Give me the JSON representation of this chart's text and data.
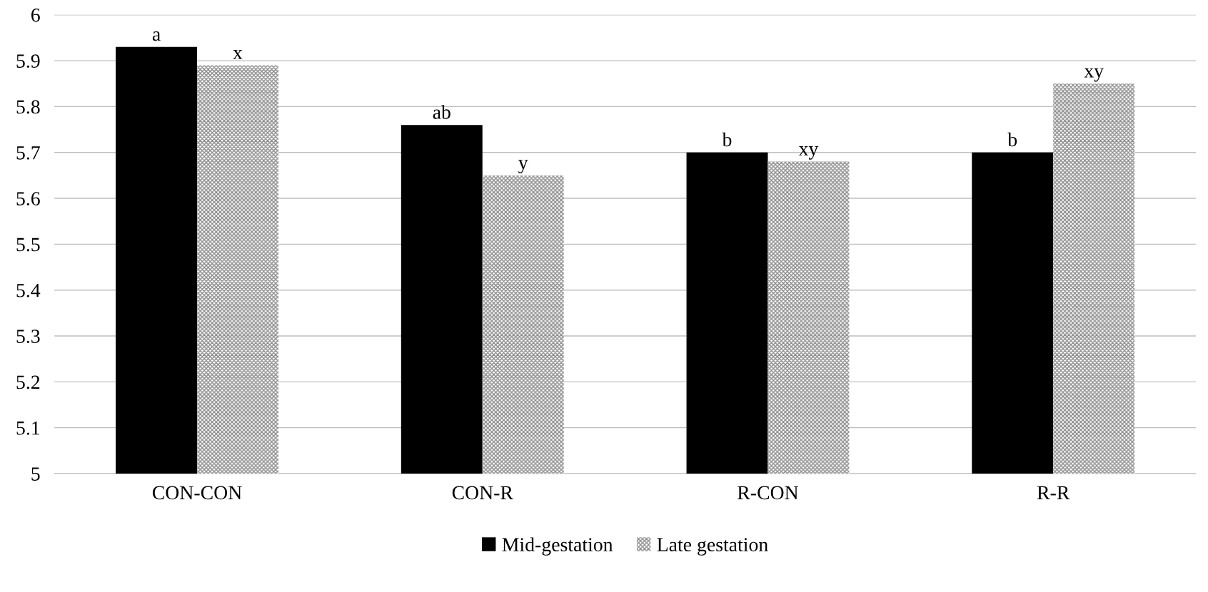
{
  "chart_data": {
    "type": "bar",
    "categories": [
      "CON-CON",
      "CON-R",
      "R-CON",
      "R-R"
    ],
    "series": [
      {
        "name": "Mid-gestation",
        "color": "#000000",
        "values": [
          5.93,
          5.76,
          5.7,
          5.7
        ],
        "value_labels": [
          "a",
          "ab",
          "b",
          "b"
        ]
      },
      {
        "name": "Late gestation",
        "color": "#8c8c8c",
        "values": [
          5.89,
          5.65,
          5.68,
          5.85
        ],
        "value_labels": [
          "x",
          "y",
          "xy",
          "xy"
        ]
      }
    ],
    "ylim": [
      5,
      6
    ],
    "yticks": [
      5,
      5.1,
      5.2,
      5.3,
      5.4,
      5.5,
      5.6,
      5.7,
      5.8,
      5.9,
      6
    ],
    "grid": "y",
    "legend": "bottom"
  }
}
